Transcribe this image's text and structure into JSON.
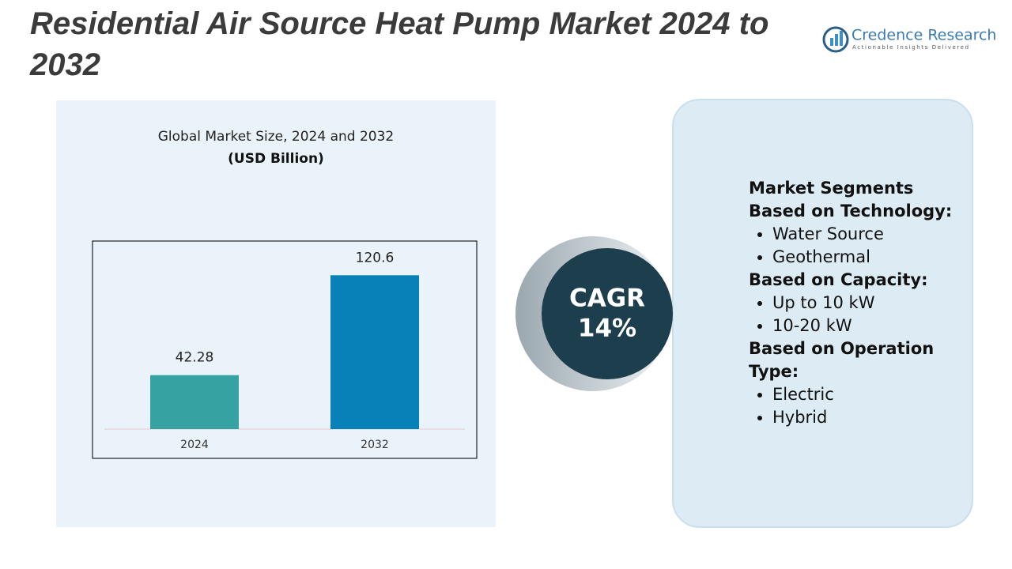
{
  "header": {
    "title": "Residential Air Source Heat Pump Market 2024 to 2032"
  },
  "logo": {
    "name": "Credence Research",
    "tagline": "Actionable Insights Delivered"
  },
  "chart_data": {
    "type": "bar",
    "title": "Global Market Size, 2024 and 2032",
    "subtitle": "(USD Billion)",
    "categories": [
      "2024",
      "2032"
    ],
    "series": [
      {
        "values": [
          42.28,
          120.6
        ]
      }
    ],
    "colors": [
      "#36a3a2",
      "#0880b8"
    ],
    "ylim": [
      0,
      140
    ]
  },
  "cagr": {
    "label": "CAGR",
    "value": "14%"
  },
  "segments": {
    "heading": "Market Segments",
    "groups": [
      {
        "title": "Based on Technology:",
        "items": [
          "Water Source",
          "Geothermal"
        ]
      },
      {
        "title": "Based on Capacity:",
        "items": [
          "Up to 10 kW",
          "10-20 kW"
        ]
      },
      {
        "title": "Based on Operation Type:",
        "items": [
          "Electric",
          "Hybrid"
        ]
      }
    ]
  }
}
